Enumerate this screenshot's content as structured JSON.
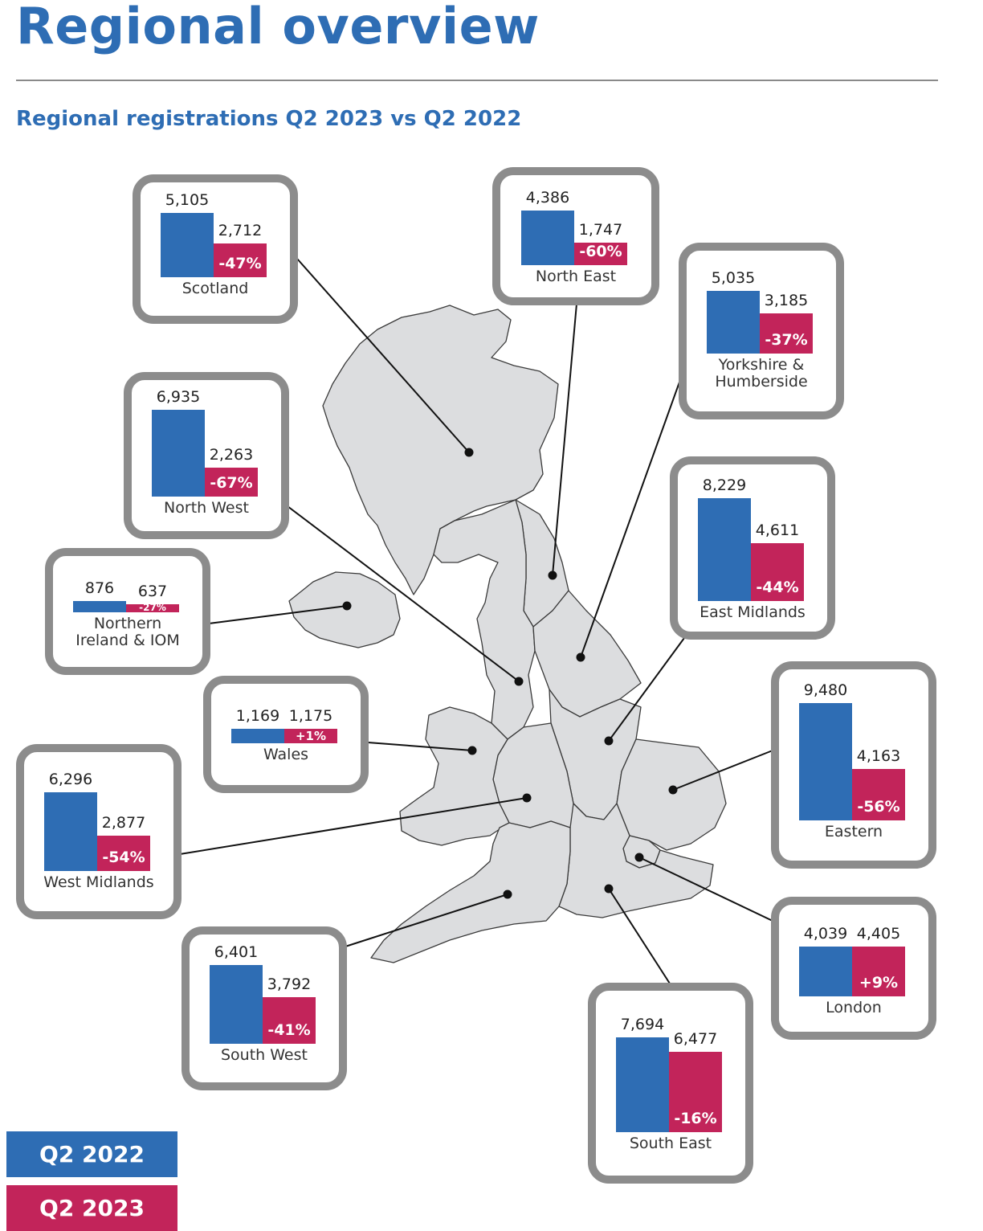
{
  "title": "Regional overview",
  "subtitle": "Regional registrations Q2 2023 vs Q2 2022",
  "legend": {
    "q2_2022": "Q2 2022",
    "q2_2023": "Q2 2023",
    "colors": {
      "q2_2022": "#2e6db4",
      "q2_2023": "#c2245a"
    }
  },
  "regions": [
    {
      "name": "Scotland",
      "q2_2022": "5,105",
      "q2_2023": "2,712",
      "change": "-47%"
    },
    {
      "name": "North East",
      "q2_2022": "4,386",
      "q2_2023": "1,747",
      "change": "-60%"
    },
    {
      "name": "Yorkshire & Humberside",
      "q2_2022": "5,035",
      "q2_2023": "3,185",
      "change": "-37%"
    },
    {
      "name": "North West",
      "q2_2022": "6,935",
      "q2_2023": "2,263",
      "change": "-67%"
    },
    {
      "name": "East Midlands",
      "q2_2022": "8,229",
      "q2_2023": "4,611",
      "change": "-44%"
    },
    {
      "name": "Northern Ireland & IOM",
      "q2_2022": "876",
      "q2_2023": "637",
      "change": "-27%"
    },
    {
      "name": "Wales",
      "q2_2022": "1,169",
      "q2_2023": "1,175",
      "change": "+1%"
    },
    {
      "name": "Eastern",
      "q2_2022": "9,480",
      "q2_2023": "4,163",
      "change": "-56%"
    },
    {
      "name": "West Midlands",
      "q2_2022": "6,296",
      "q2_2023": "2,877",
      "change": "-54%"
    },
    {
      "name": "London",
      "q2_2022": "4,039",
      "q2_2023": "4,405",
      "change": "+9%"
    },
    {
      "name": "South West",
      "q2_2022": "6,401",
      "q2_2023": "3,792",
      "change": "-41%"
    },
    {
      "name": "South East",
      "q2_2022": "7,694",
      "q2_2023": "6,477",
      "change": "-16%"
    }
  ]
}
